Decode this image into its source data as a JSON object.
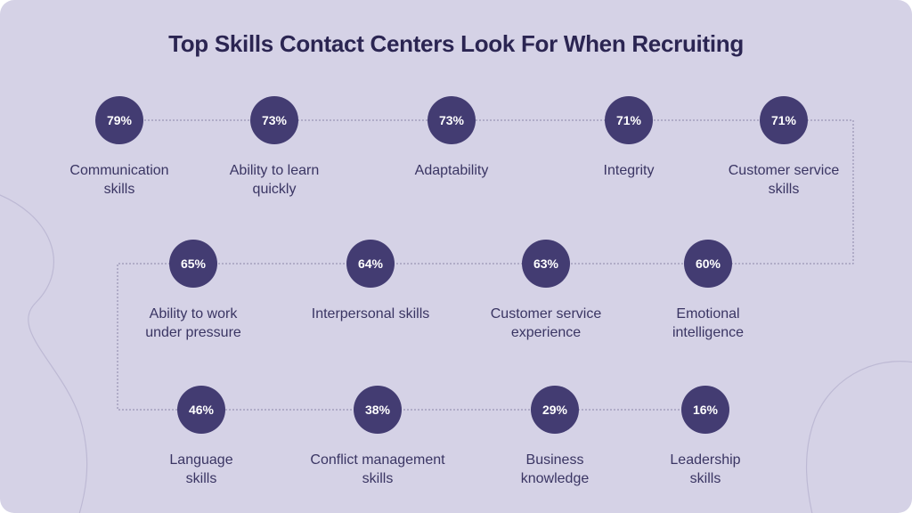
{
  "title": "Top Skills Contact Centers Look For When Recruiting",
  "colors": {
    "background": "#d5d2e6",
    "circle": "#433c72",
    "title": "#2b2552",
    "label": "#3a3563",
    "connector": "#8a86a8"
  },
  "skills": [
    {
      "percent": "79%",
      "label": "Communication\nskills"
    },
    {
      "percent": "73%",
      "label": "Ability to learn\nquickly"
    },
    {
      "percent": "73%",
      "label": "Adaptability"
    },
    {
      "percent": "71%",
      "label": "Integrity"
    },
    {
      "percent": "71%",
      "label": "Customer service\nskills"
    },
    {
      "percent": "65%",
      "label": "Ability to work\nunder pressure"
    },
    {
      "percent": "64%",
      "label": "Interpersonal skills"
    },
    {
      "percent": "63%",
      "label": "Customer service\nexperience"
    },
    {
      "percent": "60%",
      "label": "Emotional\nintelligence"
    },
    {
      "percent": "46%",
      "label": "Language\nskills"
    },
    {
      "percent": "38%",
      "label": "Conflict management\nskills"
    },
    {
      "percent": "29%",
      "label": "Business\nknowledge"
    },
    {
      "percent": "16%",
      "label": "Leadership\nskills"
    }
  ]
}
